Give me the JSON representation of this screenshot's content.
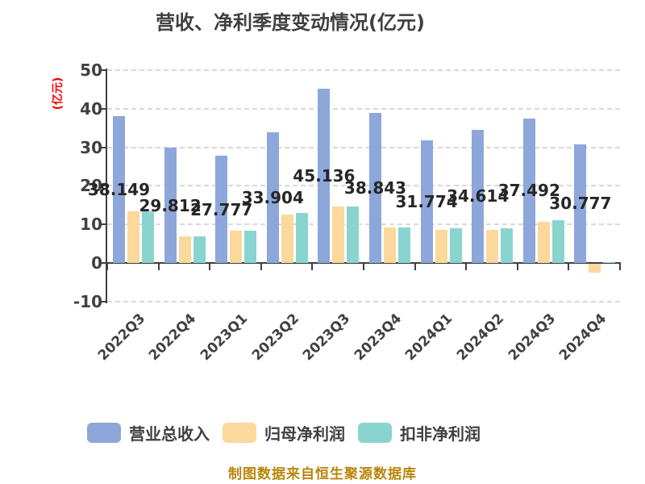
{
  "title": "营收、净利季度变动情况(亿元)",
  "y_axis_label": "(亿元)",
  "footer": "制图数据来自恒生聚源数据库",
  "colors": {
    "revenue_bar": "#8da7db",
    "net_profit_bar": "#fbd89b",
    "deducted_profit_bar": "#8ad4cf",
    "title_text": "#404040",
    "axis_text": "#404040",
    "value_label_text": "#262626",
    "y_axis_unit_text": "#ff0000",
    "gridline": "#d9d9d9",
    "axis_line": "#404040",
    "footer_text": "#b8860b"
  },
  "chart_data": {
    "type": "bar",
    "title": "营收、净利季度变动情况(亿元)",
    "ylabel": "(亿元)",
    "categories": [
      "2022Q3",
      "2022Q4",
      "2023Q1",
      "2023Q2",
      "2023Q3",
      "2023Q4",
      "2024Q1",
      "2024Q2",
      "2024Q3",
      "2024Q4"
    ],
    "series": [
      {
        "name": "营业总收入",
        "color": "#8da7db",
        "values": [
          38.149,
          29.812,
          27.777,
          33.904,
          45.136,
          38.843,
          31.774,
          34.614,
          37.492,
          30.777
        ]
      },
      {
        "name": "归母净利润",
        "color": "#fbd89b",
        "values": [
          13.3,
          6.8,
          8.4,
          12.5,
          14.7,
          9.3,
          8.5,
          8.5,
          10.6,
          -2.2
        ]
      },
      {
        "name": "扣非净利润",
        "color": "#8ad4cf",
        "values": [
          13.4,
          6.8,
          8.4,
          13.0,
          14.7,
          9.2,
          8.9,
          9.0,
          11.0,
          0.2
        ]
      }
    ],
    "value_labels": [
      "38.149",
      "29.812",
      "27.777",
      "33.904",
      "45.136",
      "38.843",
      "31.774",
      "34.614",
      "37.492",
      "30.777"
    ],
    "value_labels_series": "营业总收入",
    "ylim": [
      -10,
      50
    ],
    "yticks": [
      50,
      40,
      30,
      20,
      10,
      0,
      -10
    ],
    "grid": "horizontal-dashed",
    "legend_position": "bottom"
  },
  "legend": {
    "items": [
      {
        "label": "营业总收入",
        "color": "#8da7db"
      },
      {
        "label": "归母净利润",
        "color": "#fbd89b"
      },
      {
        "label": "扣非净利润",
        "color": "#8ad4cf"
      }
    ]
  }
}
